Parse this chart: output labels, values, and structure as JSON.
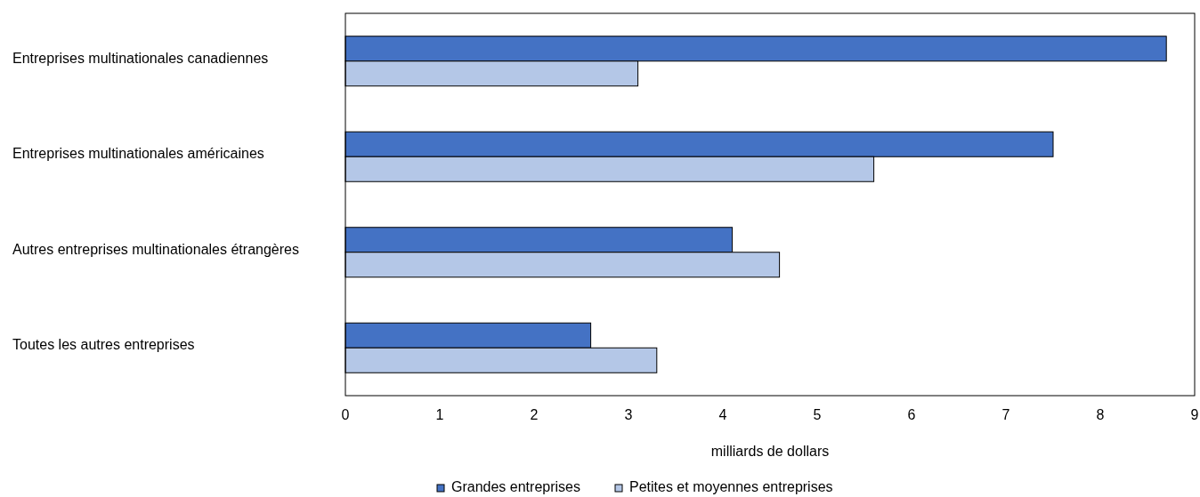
{
  "chart_data": {
    "type": "bar",
    "orientation": "horizontal",
    "categories": [
      "Entreprises multinationales canadiennes",
      "Entreprises multinationales américaines",
      "Autres entreprises multinationales étrangères",
      "Toutes les autres entreprises"
    ],
    "series": [
      {
        "name": "Grandes entreprises",
        "color": "#4472c4",
        "values": [
          8.7,
          7.5,
          4.1,
          2.6
        ]
      },
      {
        "name": "Petites et moyennes entreprises",
        "color": "#b4c7e7",
        "values": [
          3.1,
          5.6,
          4.6,
          3.3
        ]
      }
    ],
    "xlim": [
      0,
      9
    ],
    "xticks": [
      0,
      1,
      2,
      3,
      4,
      5,
      6,
      7,
      8,
      9
    ],
    "xlabel": "milliards de dollars",
    "legend": "bottom",
    "grid": false
  }
}
